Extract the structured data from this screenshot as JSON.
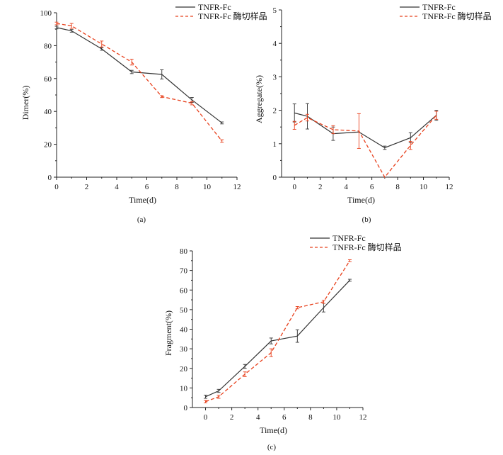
{
  "chart_data": [
    {
      "id": "a",
      "type": "line",
      "caption": "(a)",
      "xlabel": "Time(d)",
      "ylabel": "Dimer(%)",
      "xlim": [
        0,
        12
      ],
      "ylim": [
        0,
        100
      ],
      "xticks": [
        0,
        2,
        4,
        6,
        8,
        10,
        12
      ],
      "yticks": [
        0,
        20,
        40,
        60,
        80,
        100
      ],
      "legend_position": "top-right",
      "series": [
        {
          "name": "TNFR-Fc",
          "color": "#333333",
          "dash": "solid",
          "x": [
            0,
            1,
            3,
            5,
            7,
            9,
            11
          ],
          "y": [
            91,
            89,
            78,
            64,
            62.5,
            47,
            33
          ],
          "err": [
            0.8,
            0.8,
            0.8,
            1.0,
            2.8,
            1.5,
            0.6
          ]
        },
        {
          "name": "TNFR-Fc 酶切样品",
          "color": "#e8401c",
          "dash": "dashed",
          "x": [
            0,
            1,
            3,
            5,
            7,
            9,
            11
          ],
          "y": [
            93.5,
            92,
            81,
            70,
            49,
            45,
            22
          ],
          "err": [
            0.8,
            1.5,
            1.8,
            1.8,
            0.6,
            1.0,
            0.8
          ]
        }
      ]
    },
    {
      "id": "b",
      "type": "line",
      "caption": "(b)",
      "xlabel": "Time(d)",
      "ylabel": "Aggregate(%)",
      "xlim": [
        -1,
        12
      ],
      "ylim": [
        0,
        5
      ],
      "xticks": [
        0,
        2,
        4,
        6,
        8,
        10,
        12
      ],
      "yticks": [
        0,
        1,
        2,
        3,
        4,
        5
      ],
      "legend_position": "top-right",
      "series": [
        {
          "name": "TNFR-Fc",
          "color": "#333333",
          "dash": "solid",
          "x": [
            0,
            1,
            3,
            5,
            7,
            9,
            11
          ],
          "y": [
            1.92,
            1.82,
            1.3,
            1.35,
            0.88,
            1.18,
            1.85
          ],
          "err": [
            0.27,
            0.38,
            0.2,
            0.0,
            0.05,
            0.15,
            0.15
          ]
        },
        {
          "name": "TNFR-Fc 酶切样品",
          "color": "#e8401c",
          "dash": "dashed",
          "x": [
            0,
            1,
            3,
            5,
            7,
            9,
            11
          ],
          "y": [
            1.55,
            1.78,
            1.42,
            1.38,
            0.0,
            0.95,
            1.85
          ],
          "err": [
            0.12,
            0.1,
            0.12,
            0.52,
            0.0,
            0.12,
            0.12
          ]
        }
      ]
    },
    {
      "id": "c",
      "type": "line",
      "caption": "(c)",
      "xlabel": "Time(d)",
      "ylabel": "Fragment(%)",
      "xlim": [
        -1,
        12
      ],
      "ylim": [
        0,
        80
      ],
      "xticks": [
        0,
        2,
        4,
        6,
        8,
        10,
        12
      ],
      "yticks": [
        0,
        10,
        20,
        30,
        40,
        50,
        60,
        70,
        80
      ],
      "legend_position": "top-right",
      "series": [
        {
          "name": "TNFR-Fc",
          "color": "#333333",
          "dash": "solid",
          "x": [
            0,
            1,
            3,
            5,
            7,
            9,
            11
          ],
          "y": [
            5.5,
            8.5,
            21,
            34,
            36.5,
            51,
            65
          ],
          "err": [
            0.8,
            0.8,
            1.0,
            1.5,
            3.2,
            2.2,
            0.5
          ]
        },
        {
          "name": "TNFR-Fc 酶切样品",
          "color": "#e8401c",
          "dash": "dashed",
          "x": [
            0,
            1,
            3,
            5,
            7,
            9,
            11
          ],
          "y": [
            3,
            5.5,
            17,
            28,
            51,
            54,
            75
          ],
          "err": [
            0.6,
            0.8,
            1.2,
            2.0,
            0.6,
            0.8,
            0.5
          ]
        }
      ]
    }
  ]
}
